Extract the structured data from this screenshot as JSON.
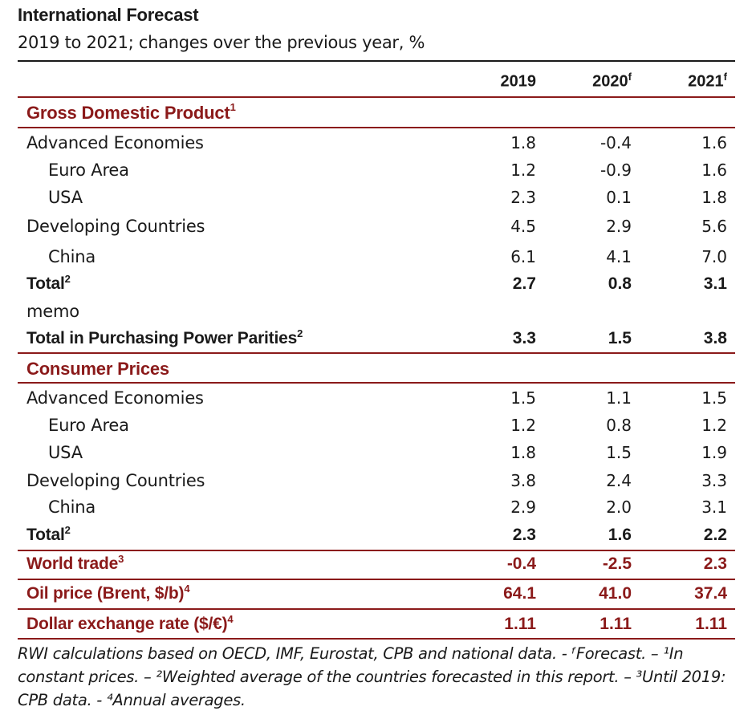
{
  "title": "International Forecast",
  "subtitle": "2019 to 2021; changes over the previous year, %",
  "columns": [
    {
      "year": "2019",
      "sup": ""
    },
    {
      "year": "2020",
      "sup": "f"
    },
    {
      "year": "2021",
      "sup": "f"
    }
  ],
  "rows": [
    {
      "label": "Gross Domestic Product",
      "sup": "1",
      "kind": "section",
      "values": [
        "",
        "",
        ""
      ]
    },
    {
      "label": "Advanced Economies",
      "sup": "",
      "kind": "normal",
      "values": [
        "1.8",
        "-0.4",
        "1.6"
      ]
    },
    {
      "label": "Euro Area",
      "sup": "",
      "kind": "indent",
      "values": [
        "1.2",
        "-0.9",
        "1.6"
      ]
    },
    {
      "label": "USA",
      "sup": "",
      "kind": "indent",
      "values": [
        "2.3",
        "0.1",
        "1.8"
      ]
    },
    {
      "label": "Developing Countries",
      "sup": "",
      "kind": "normal",
      "values": [
        "4.5",
        "2.9",
        "5.6"
      ]
    },
    {
      "label": "China",
      "sup": "",
      "kind": "indent",
      "values": [
        "6.1",
        "4.1",
        "7.0"
      ]
    },
    {
      "label": "Total",
      "sup": "2",
      "kind": "bold",
      "values": [
        "2.7",
        "0.8",
        "3.1"
      ]
    },
    {
      "label": "memo",
      "sup": "",
      "kind": "normal",
      "values": [
        "",
        "",
        ""
      ]
    },
    {
      "label": "Total in Purchasing Power Parities",
      "sup": "2",
      "kind": "bold",
      "values": [
        "3.3",
        "1.5",
        "3.8"
      ]
    },
    {
      "label": "Consumer Prices",
      "sup": "",
      "kind": "section",
      "values": [
        "",
        "",
        ""
      ]
    },
    {
      "label": "Advanced Economies",
      "sup": "",
      "kind": "normal",
      "values": [
        "1.5",
        "1.1",
        "1.5"
      ]
    },
    {
      "label": "Euro Area",
      "sup": "",
      "kind": "indent",
      "values": [
        "1.2",
        "0.8",
        "1.2"
      ]
    },
    {
      "label": "USA",
      "sup": "",
      "kind": "indent",
      "values": [
        "1.8",
        "1.5",
        "1.9"
      ]
    },
    {
      "label": "Developing Countries",
      "sup": "",
      "kind": "normal",
      "values": [
        "3.8",
        "2.4",
        "3.3"
      ]
    },
    {
      "label": "China",
      "sup": "",
      "kind": "indent",
      "values": [
        "2.9",
        "2.0",
        "3.1"
      ]
    },
    {
      "label": "Total",
      "sup": "2",
      "kind": "bold",
      "values": [
        "2.3",
        "1.6",
        "2.2"
      ]
    },
    {
      "label": "World trade",
      "sup": "3",
      "kind": "red",
      "values": [
        "-0.4",
        "-2.5",
        "2.3"
      ]
    },
    {
      "label": "Oil price (Brent, $/b)",
      "sup": "4",
      "kind": "red",
      "values": [
        "64.1",
        "41.0",
        "37.4"
      ]
    },
    {
      "label": "Dollar exchange rate ($/€)",
      "sup": "4",
      "kind": "red",
      "values": [
        "1.11",
        "1.11",
        "1.11"
      ]
    }
  ],
  "footnote": "RWI calculations based on OECD, IMF, Eurostat, CPB and national data. - ᶠForecast. – ¹In constant prices. – ²Weighted average of the countries forecasted in this report. – ³Until 2019: CPB data. - ⁴Annual averages.",
  "colors": {
    "accent": "#8b1a1a",
    "text": "#1a1a1a"
  },
  "chart_data": {
    "type": "table",
    "title": "International Forecast",
    "subtitle": "2019 to 2021; changes over the previous year, %",
    "categories": [
      "2019",
      "2020f",
      "2021f"
    ],
    "series": [
      {
        "name": "Gross Domestic Product - Advanced Economies",
        "values": [
          1.8,
          -0.4,
          1.6
        ]
      },
      {
        "name": "Gross Domestic Product - Euro Area",
        "values": [
          1.2,
          -0.9,
          1.6
        ]
      },
      {
        "name": "Gross Domestic Product - USA",
        "values": [
          2.3,
          0.1,
          1.8
        ]
      },
      {
        "name": "Gross Domestic Product - Developing Countries",
        "values": [
          4.5,
          2.9,
          5.6
        ]
      },
      {
        "name": "Gross Domestic Product - China",
        "values": [
          6.1,
          4.1,
          7.0
        ]
      },
      {
        "name": "Gross Domestic Product - Total",
        "values": [
          2.7,
          0.8,
          3.1
        ]
      },
      {
        "name": "Total in Purchasing Power Parities",
        "values": [
          3.3,
          1.5,
          3.8
        ]
      },
      {
        "name": "Consumer Prices - Advanced Economies",
        "values": [
          1.5,
          1.1,
          1.5
        ]
      },
      {
        "name": "Consumer Prices - Euro Area",
        "values": [
          1.2,
          0.8,
          1.2
        ]
      },
      {
        "name": "Consumer Prices - USA",
        "values": [
          1.8,
          1.5,
          1.9
        ]
      },
      {
        "name": "Consumer Prices - Developing Countries",
        "values": [
          3.8,
          2.4,
          3.3
        ]
      },
      {
        "name": "Consumer Prices - China",
        "values": [
          2.9,
          2.0,
          3.1
        ]
      },
      {
        "name": "Consumer Prices - Total",
        "values": [
          2.3,
          1.6,
          2.2
        ]
      },
      {
        "name": "World trade",
        "values": [
          -0.4,
          -2.5,
          2.3
        ]
      },
      {
        "name": "Oil price (Brent, $/b)",
        "values": [
          64.1,
          41.0,
          37.4
        ]
      },
      {
        "name": "Dollar exchange rate ($/€)",
        "values": [
          1.11,
          1.11,
          1.11
        ]
      }
    ]
  }
}
